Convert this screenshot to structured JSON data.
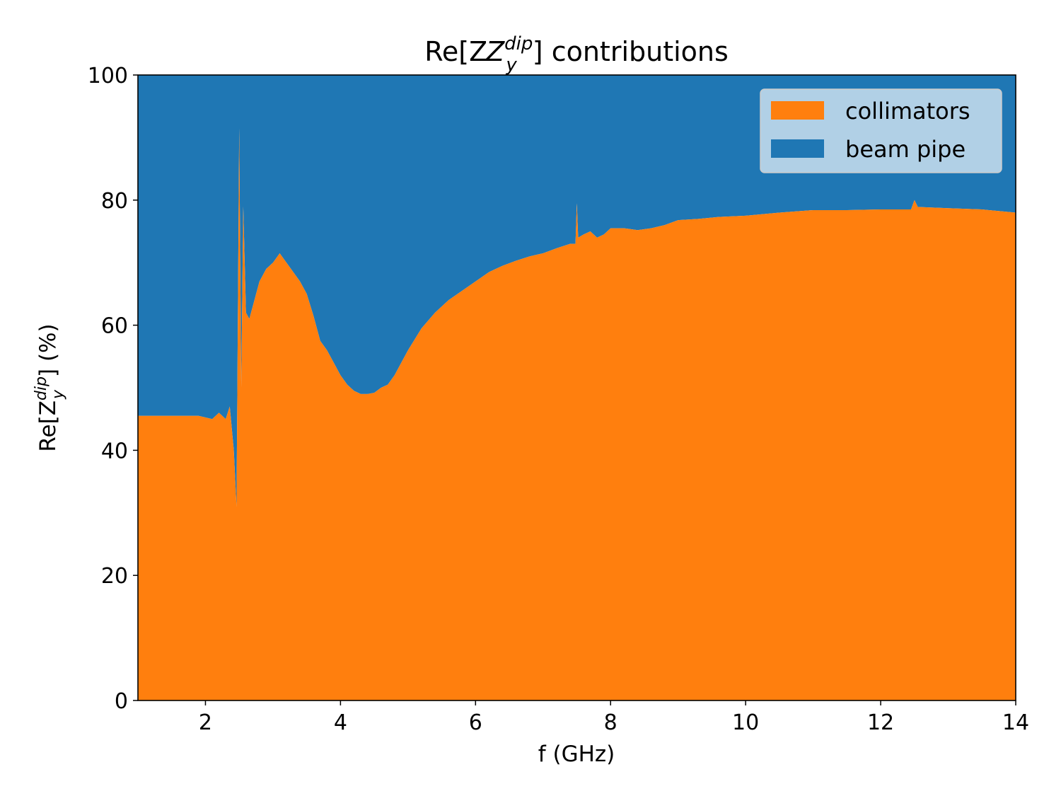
{
  "chart_data": {
    "type": "area",
    "stacked": true,
    "title": {
      "prefix": "Re[Z",
      "subscript": "y",
      "superscript": "dip",
      "suffix": "] contributions"
    },
    "xlabel": "f (GHz)",
    "ylabel": {
      "prefix": "Re[Z",
      "subscript": "y",
      "superscript": "dip",
      "suffix": "] (%)"
    },
    "xlim": [
      1,
      14
    ],
    "ylim": [
      0,
      100
    ],
    "xticks": [
      2,
      4,
      6,
      8,
      10,
      12,
      14
    ],
    "yticks": [
      0,
      20,
      40,
      60,
      80,
      100
    ],
    "grid": false,
    "legend_position": "top-right",
    "series": [
      {
        "name": "collimators",
        "color": "#ff7f0e",
        "x": [
          1.0,
          1.3,
          1.6,
          1.9,
          2.1,
          2.2,
          2.3,
          2.36,
          2.42,
          2.46,
          2.5,
          2.53,
          2.56,
          2.6,
          2.65,
          2.7,
          2.8,
          2.9,
          3.0,
          3.1,
          3.2,
          3.3,
          3.4,
          3.5,
          3.6,
          3.7,
          3.8,
          3.9,
          4.0,
          4.1,
          4.2,
          4.3,
          4.4,
          4.5,
          4.6,
          4.7,
          4.8,
          4.9,
          5.0,
          5.2,
          5.4,
          5.6,
          5.8,
          6.0,
          6.2,
          6.4,
          6.6,
          6.8,
          7.0,
          7.2,
          7.4,
          7.48,
          7.5,
          7.52,
          7.6,
          7.7,
          7.8,
          7.9,
          8.0,
          8.2,
          8.4,
          8.6,
          8.8,
          9.0,
          9.3,
          9.6,
          10.0,
          10.5,
          11.0,
          11.5,
          12.0,
          12.45,
          12.5,
          12.55,
          13.0,
          13.5,
          14.0
        ],
        "values": [
          45.5,
          45.5,
          45.5,
          45.5,
          45.0,
          46.0,
          45.0,
          47.0,
          40.0,
          31.0,
          91.5,
          50.0,
          79.0,
          62.0,
          61.0,
          63.0,
          67.0,
          69.0,
          70.0,
          71.5,
          70.0,
          68.5,
          67.0,
          65.0,
          61.5,
          57.5,
          56.0,
          54.0,
          52.0,
          50.5,
          49.5,
          49.0,
          49.0,
          49.2,
          50.0,
          50.5,
          52.0,
          54.0,
          56.0,
          59.5,
          62.0,
          64.0,
          65.5,
          67.0,
          68.5,
          69.5,
          70.3,
          71.0,
          71.5,
          72.3,
          73.0,
          73.0,
          79.5,
          74.0,
          74.5,
          75.0,
          74.0,
          74.5,
          75.5,
          75.5,
          75.2,
          75.5,
          76.0,
          76.8,
          77.0,
          77.3,
          77.5,
          78.0,
          78.4,
          78.4,
          78.5,
          78.5,
          80.0,
          78.9,
          78.7,
          78.5,
          78.0
        ]
      },
      {
        "name": "beam pipe",
        "color": "#1f77b4",
        "fill_to": 100
      }
    ]
  },
  "legend_bg": "#d6e6f2"
}
